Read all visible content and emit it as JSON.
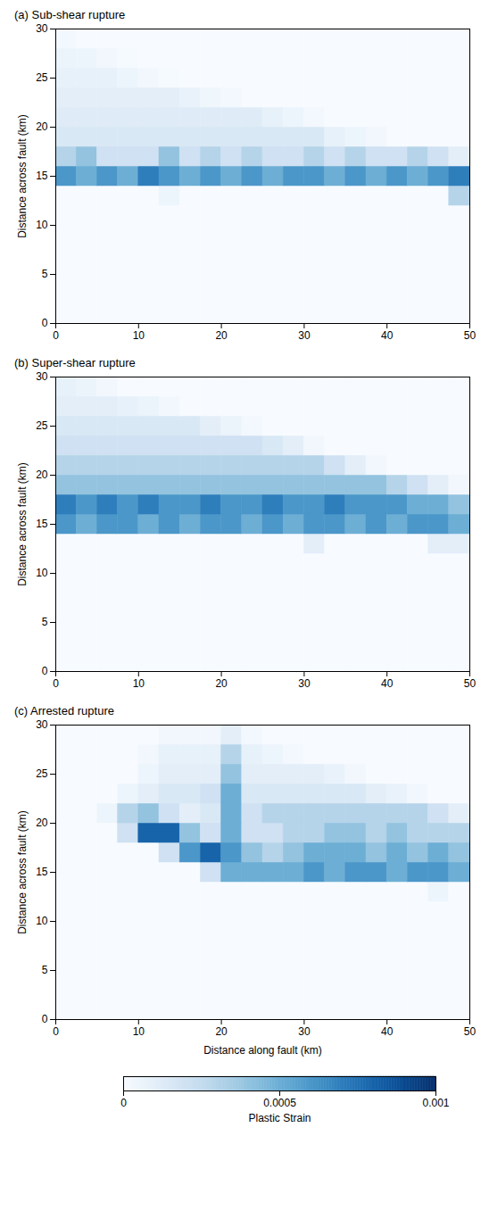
{
  "chart_data": {
    "type": "heatmap",
    "ylabel": "Distance across fault (km)",
    "xlim": [
      0,
      50
    ],
    "xticks": [
      0,
      10,
      20,
      30,
      40,
      50
    ],
    "ylim": [
      0,
      30
    ],
    "yticks": [
      0,
      5,
      10,
      15,
      20,
      25,
      30
    ],
    "x_edges": [
      0,
      2.5,
      5,
      7.5,
      10,
      12.5,
      15,
      17.5,
      20,
      22.5,
      25,
      27.5,
      30,
      32.5,
      35,
      37.5,
      40,
      42.5,
      45,
      47.5,
      50
    ],
    "y_edges": [
      0,
      2,
      4,
      6,
      8,
      10,
      12,
      14,
      16,
      18,
      20,
      22,
      24,
      26,
      28,
      30
    ],
    "panels": [
      {
        "title": "(a) Sub-shear rupture",
        "values": [
          [
            0,
            0,
            0,
            0,
            0,
            0,
            0,
            0,
            0,
            0,
            0,
            0,
            0,
            0,
            0,
            0,
            0,
            0,
            0,
            0
          ],
          [
            0,
            0,
            0,
            0,
            0,
            0,
            0,
            0,
            0,
            0,
            0,
            0,
            0,
            0,
            0,
            0,
            0,
            0,
            0,
            0
          ],
          [
            0,
            0,
            0,
            0,
            0,
            0,
            0,
            0,
            0,
            0,
            0,
            0,
            0,
            0,
            0,
            0,
            0,
            0,
            0,
            0
          ],
          [
            0,
            0,
            0,
            0,
            0,
            0,
            0,
            0,
            0,
            0,
            0,
            0,
            0,
            0,
            0,
            0,
            0,
            0,
            0,
            0
          ],
          [
            0,
            0,
            0,
            0,
            0,
            0,
            0,
            0,
            0,
            0,
            0,
            0,
            0,
            0,
            0,
            0,
            0,
            0,
            0,
            0
          ],
          [
            0,
            0,
            0,
            0,
            0,
            0,
            0,
            0,
            0,
            0,
            0,
            0,
            0,
            0,
            0,
            0,
            0,
            0,
            0,
            0
          ],
          [
            0,
            0,
            0,
            0,
            0,
            5e-05,
            0,
            0,
            0,
            0,
            0,
            0,
            0,
            0,
            0,
            0,
            0,
            0,
            0,
            0.0003
          ],
          [
            0.0006,
            0.0005,
            0.0006,
            0.0005,
            0.0007,
            0.0006,
            0.0005,
            0.0006,
            0.0005,
            0.0006,
            0.0005,
            0.0006,
            0.0006,
            0.0005,
            0.0006,
            0.0005,
            0.0006,
            0.0005,
            0.0006,
            0.0007
          ],
          [
            0.0003,
            0.0004,
            0.0002,
            0.0002,
            0.0002,
            0.0004,
            0.0002,
            0.0003,
            0.0002,
            0.0003,
            0.0002,
            0.0002,
            0.0003,
            0.0002,
            0.0003,
            0.0002,
            0.0002,
            0.0003,
            0.0002,
            0.0001
          ],
          [
            0.00015,
            0.00015,
            0.00015,
            0.00015,
            0.00015,
            0.00015,
            0.00015,
            0.00015,
            0.00015,
            0.00015,
            0.00015,
            0.00015,
            0.00015,
            8e-05,
            5e-05,
            3e-05,
            0,
            0,
            0,
            0
          ],
          [
            0.00012,
            0.00012,
            0.00012,
            0.00012,
            0.00012,
            0.00012,
            0.00012,
            0.00012,
            0.00012,
            0.00012,
            8e-05,
            5e-05,
            2e-05,
            0,
            0,
            0,
            0,
            0,
            0,
            0
          ],
          [
            0.0001,
            0.0001,
            0.0001,
            0.0001,
            0.0001,
            0.0001,
            7e-05,
            4e-05,
            2e-05,
            0,
            0,
            0,
            0,
            0,
            0,
            0,
            0,
            0,
            0,
            0
          ],
          [
            8e-05,
            8e-05,
            8e-05,
            5e-05,
            3e-05,
            1e-05,
            0,
            0,
            0,
            0,
            0,
            0,
            0,
            0,
            0,
            0,
            0,
            0,
            0,
            0
          ],
          [
            6e-05,
            5e-05,
            3e-05,
            1e-05,
            0,
            0,
            0,
            0,
            0,
            0,
            0,
            0,
            0,
            0,
            0,
            0,
            0,
            0,
            0,
            0
          ],
          [
            2e-05,
            0,
            0,
            0,
            0,
            0,
            0,
            0,
            0,
            0,
            0,
            0,
            0,
            0,
            0,
            0,
            0,
            0,
            0,
            0
          ]
        ]
      },
      {
        "title": "(b) Super-shear rupture",
        "values": [
          [
            0,
            0,
            0,
            0,
            0,
            0,
            0,
            0,
            0,
            0,
            0,
            0,
            0,
            0,
            0,
            0,
            0,
            0,
            0,
            0
          ],
          [
            0,
            0,
            0,
            0,
            0,
            0,
            0,
            0,
            0,
            0,
            0,
            0,
            0,
            0,
            0,
            0,
            0,
            0,
            0,
            0
          ],
          [
            0,
            0,
            0,
            0,
            0,
            0,
            0,
            0,
            0,
            0,
            0,
            0,
            0,
            0,
            0,
            0,
            0,
            0,
            0,
            0
          ],
          [
            0,
            0,
            0,
            0,
            0,
            0,
            0,
            0,
            0,
            0,
            0,
            0,
            0,
            0,
            0,
            0,
            0,
            0,
            0,
            0
          ],
          [
            0,
            0,
            0,
            0,
            0,
            0,
            0,
            0,
            0,
            0,
            0,
            0,
            0,
            0,
            0,
            0,
            0,
            0,
            0,
            0
          ],
          [
            0,
            0,
            0,
            0,
            0,
            0,
            0,
            0,
            0,
            0,
            0,
            0,
            0,
            0,
            0,
            0,
            0,
            0,
            0,
            0
          ],
          [
            0,
            0,
            0,
            0,
            0,
            0,
            0,
            0,
            0,
            0,
            0,
            0,
            0.0001,
            0,
            0,
            0,
            0,
            0,
            0.0001,
            0.0001
          ],
          [
            0.0006,
            0.0005,
            0.0006,
            0.0006,
            0.0005,
            0.0006,
            0.0005,
            0.0006,
            0.0006,
            0.0005,
            0.0006,
            0.0005,
            0.0006,
            0.0006,
            0.0005,
            0.0006,
            0.0005,
            0.0006,
            0.0006,
            0.0005
          ],
          [
            0.0007,
            0.0006,
            0.0007,
            0.0006,
            0.0007,
            0.0006,
            0.0006,
            0.0007,
            0.0006,
            0.0006,
            0.0007,
            0.0006,
            0.0006,
            0.0007,
            0.0006,
            0.0006,
            0.0006,
            0.0005,
            0.0005,
            0.0004
          ],
          [
            0.0004,
            0.0004,
            0.0004,
            0.0004,
            0.0004,
            0.0004,
            0.0004,
            0.0004,
            0.0004,
            0.0004,
            0.0004,
            0.0004,
            0.0004,
            0.0004,
            0.0004,
            0.0004,
            0.0003,
            0.0002,
            0.0001,
            3e-05
          ],
          [
            0.0003,
            0.0003,
            0.0003,
            0.0003,
            0.0003,
            0.0003,
            0.0003,
            0.0003,
            0.0003,
            0.0003,
            0.0003,
            0.0003,
            0.0003,
            0.0002,
            0.0001,
            3e-05,
            0,
            0,
            0,
            0
          ],
          [
            0.0002,
            0.0002,
            0.0002,
            0.0002,
            0.0002,
            0.0002,
            0.0002,
            0.0002,
            0.0002,
            0.0002,
            0.00015,
            0.0001,
            3e-05,
            0,
            0,
            0,
            0,
            0,
            0,
            0
          ],
          [
            0.00015,
            0.00015,
            0.00015,
            0.00015,
            0.00015,
            0.00015,
            0.00015,
            0.0001,
            6e-05,
            2e-05,
            0,
            0,
            0,
            0,
            0,
            0,
            0,
            0,
            0,
            0
          ],
          [
            0.0001,
            0.0001,
            0.0001,
            8e-05,
            6e-05,
            3e-05,
            0,
            0,
            0,
            0,
            0,
            0,
            0,
            0,
            0,
            0,
            0,
            0,
            0,
            0
          ],
          [
            8e-05,
            6e-05,
            3e-05,
            0,
            0,
            0,
            0,
            0,
            0,
            0,
            0,
            0,
            0,
            0,
            0,
            0,
            0,
            0,
            0,
            0
          ]
        ]
      },
      {
        "title": "(c) Arrested rupture",
        "xlabel": "Distance along fault (km)",
        "values": [
          [
            0,
            0,
            0,
            0,
            0,
            0,
            0,
            0,
            0,
            0,
            0,
            0,
            0,
            0,
            0,
            0,
            0,
            0,
            0,
            0
          ],
          [
            0,
            0,
            0,
            0,
            0,
            0,
            0,
            0,
            0,
            0,
            0,
            0,
            0,
            0,
            0,
            0,
            0,
            0,
            0,
            0
          ],
          [
            0,
            0,
            0,
            0,
            0,
            0,
            0,
            0,
            0,
            0,
            0,
            0,
            0,
            0,
            0,
            0,
            0,
            0,
            0,
            0
          ],
          [
            0,
            0,
            0,
            0,
            0,
            0,
            0,
            0,
            0,
            0,
            0,
            0,
            0,
            0,
            0,
            0,
            0,
            0,
            0,
            0
          ],
          [
            0,
            0,
            0,
            0,
            0,
            0,
            0,
            0,
            0,
            0,
            0,
            0,
            0,
            0,
            0,
            0,
            0,
            0,
            0,
            0
          ],
          [
            0,
            0,
            0,
            0,
            0,
            0,
            0,
            0,
            0,
            0,
            0,
            0,
            0,
            0,
            0,
            0,
            0,
            0,
            0,
            0
          ],
          [
            0,
            0,
            0,
            0,
            0,
            0,
            0,
            0,
            0,
            0,
            0,
            0,
            0,
            0,
            0,
            0,
            0,
            0,
            5e-05,
            0
          ],
          [
            0,
            0,
            0,
            0,
            0,
            0,
            0,
            0.0002,
            0.0005,
            0.0005,
            0.0005,
            0.0005,
            0.0006,
            0.0005,
            0.0006,
            0.0006,
            0.0005,
            0.0006,
            0.0006,
            0.0005
          ],
          [
            0,
            0,
            0,
            0,
            0,
            0.0002,
            0.0006,
            0.0008,
            0.0006,
            0.0004,
            0.0003,
            0.0004,
            0.0005,
            0.0005,
            0.0005,
            0.0004,
            0.0005,
            0.0004,
            0.0005,
            0.0004
          ],
          [
            0,
            0,
            0,
            0.0002,
            0.0008,
            0.0008,
            0.0004,
            0.0002,
            0.0005,
            0.0002,
            0.0002,
            0.0003,
            0.0003,
            0.0004,
            0.0004,
            0.0003,
            0.0004,
            0.0003,
            0.0003,
            0.0003
          ],
          [
            0,
            0,
            5e-05,
            0.0003,
            0.0004,
            0.0002,
            0.0001,
            0.00015,
            0.0005,
            0.0002,
            0.0003,
            0.0003,
            0.0003,
            0.0003,
            0.0003,
            0.0003,
            0.0003,
            0.0003,
            0.0002,
            0.0001
          ],
          [
            0,
            0,
            0,
            5e-05,
            0.0001,
            0.00015,
            0.00015,
            0.0002,
            0.0005,
            0.00015,
            0.00015,
            0.00015,
            0.00015,
            0.00015,
            0.00015,
            0.0001,
            7e-05,
            3e-05,
            0,
            0
          ],
          [
            0,
            0,
            0,
            0,
            5e-05,
            0.0001,
            0.0001,
            0.0001,
            0.0004,
            0.0001,
            0.0001,
            0.0001,
            0.0001,
            7e-05,
            3e-05,
            0,
            0,
            0,
            0,
            0
          ],
          [
            0,
            0,
            0,
            0,
            3e-05,
            8e-05,
            8e-05,
            8e-05,
            0.0003,
            8e-05,
            5e-05,
            2e-05,
            0,
            0,
            0,
            0,
            0,
            0,
            0,
            0
          ],
          [
            0,
            0,
            0,
            0,
            0,
            3e-05,
            3e-05,
            3e-05,
            0.0001,
            2e-05,
            0,
            0,
            0,
            0,
            0,
            0,
            0,
            0,
            0,
            0
          ]
        ]
      }
    ],
    "colorbar": {
      "label": "Plastic Strain",
      "range": [
        0,
        0.001
      ],
      "ticks": [
        0,
        0.0005,
        0.001
      ]
    }
  }
}
